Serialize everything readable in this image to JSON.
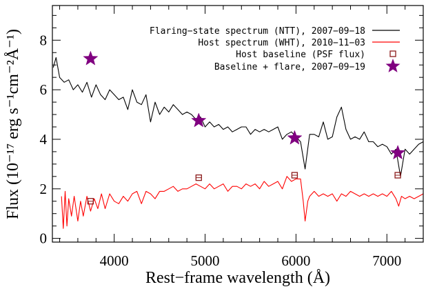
{
  "chart_data": {
    "type": "line",
    "title": "",
    "xlabel": "Rest−frame wavelength (Å)",
    "ylabel": "Flux  (10⁻¹⁷ erg s⁻¹cm⁻²Å⁻¹)",
    "xlim": [
      3320,
      7400
    ],
    "ylim": [
      -0.15,
      9.4
    ],
    "xticks": [
      4000,
      5000,
      6000,
      7000
    ],
    "yticks": [
      0,
      2,
      4,
      6,
      8
    ],
    "xtick_labels": [
      "4000",
      "5000",
      "6000",
      "7000"
    ],
    "ytick_labels": [
      "0",
      "2",
      "4",
      "6",
      "8"
    ],
    "grid": false,
    "legend_position": "top-right",
    "series": [
      {
        "name": "Flaring−state spectrum (NTT), 2007−09−18",
        "kind": "line",
        "color": "#000000",
        "x": [
          3330,
          3360,
          3400,
          3450,
          3500,
          3550,
          3600,
          3650,
          3700,
          3750,
          3800,
          3850,
          3900,
          3950,
          4000,
          4050,
          4100,
          4150,
          4200,
          4250,
          4300,
          4350,
          4400,
          4450,
          4500,
          4550,
          4600,
          4650,
          4700,
          4750,
          4800,
          4850,
          4900,
          4950,
          5000,
          5050,
          5100,
          5150,
          5200,
          5250,
          5300,
          5350,
          5400,
          5450,
          5500,
          5550,
          5600,
          5650,
          5700,
          5750,
          5800,
          5850,
          5900,
          5950,
          6000,
          6050,
          6100,
          6150,
          6200,
          6250,
          6300,
          6350,
          6400,
          6450,
          6500,
          6550,
          6600,
          6650,
          6700,
          6750,
          6800,
          6850,
          6900,
          6950,
          7000,
          7050,
          7100,
          7150,
          7200,
          7250,
          7300,
          7350,
          7400
        ],
        "y": [
          6.9,
          7.3,
          6.5,
          6.3,
          6.4,
          6.0,
          6.2,
          5.9,
          6.3,
          5.7,
          6.2,
          5.8,
          5.6,
          6.0,
          5.8,
          5.6,
          5.7,
          5.2,
          6.0,
          5.5,
          5.4,
          5.8,
          4.7,
          5.5,
          5.0,
          5.3,
          5.1,
          5.4,
          5.2,
          5.0,
          5.1,
          5.0,
          4.8,
          4.9,
          4.5,
          4.7,
          4.5,
          4.6,
          4.4,
          4.5,
          4.3,
          4.4,
          4.5,
          4.5,
          4.2,
          4.4,
          4.3,
          4.4,
          4.3,
          4.4,
          4.5,
          4.0,
          4.2,
          4.3,
          4.1,
          3.9,
          2.8,
          4.2,
          4.2,
          4.1,
          4.7,
          4.0,
          4.1,
          4.9,
          5.3,
          4.4,
          4.0,
          4.1,
          4.0,
          4.3,
          3.9,
          3.9,
          3.7,
          3.8,
          3.7,
          3.4,
          3.6,
          2.5,
          3.6,
          3.4,
          3.6,
          3.8,
          3.9
        ]
      },
      {
        "name": "Host spectrum (WHT), 2010−11−03",
        "kind": "line",
        "color": "#ff0000",
        "x": [
          3420,
          3440,
          3460,
          3480,
          3500,
          3530,
          3560,
          3600,
          3630,
          3660,
          3700,
          3740,
          3780,
          3820,
          3860,
          3900,
          3950,
          4000,
          4050,
          4100,
          4150,
          4200,
          4250,
          4300,
          4350,
          4400,
          4450,
          4500,
          4550,
          4600,
          4650,
          4700,
          4750,
          4800,
          4850,
          4900,
          4950,
          5000,
          5050,
          5100,
          5150,
          5200,
          5250,
          5300,
          5350,
          5400,
          5450,
          5500,
          5550,
          5600,
          5650,
          5700,
          5750,
          5800,
          5850,
          5900,
          5950,
          6000,
          6050,
          6080,
          6100,
          6130,
          6150,
          6200,
          6250,
          6300,
          6350,
          6400,
          6450,
          6500,
          6550,
          6600,
          6650,
          6700,
          6750,
          6800,
          6850,
          6900,
          6950,
          7000,
          7050,
          7100,
          7130,
          7160,
          7200,
          7250,
          7300,
          7350,
          7400
        ],
        "y": [
          1.7,
          0.4,
          1.9,
          0.5,
          1.6,
          0.9,
          1.7,
          0.7,
          1.5,
          0.9,
          1.7,
          1.1,
          1.6,
          1.2,
          1.8,
          1.2,
          1.8,
          1.5,
          1.4,
          1.7,
          1.5,
          1.8,
          1.9,
          1.4,
          1.9,
          1.8,
          1.6,
          1.9,
          1.9,
          2.0,
          2.1,
          1.9,
          2.0,
          2.0,
          2.1,
          2.2,
          2.1,
          2.0,
          2.2,
          2.0,
          2.1,
          2.2,
          1.9,
          2.1,
          2.1,
          2.0,
          2.2,
          2.1,
          2.2,
          2.0,
          2.3,
          2.1,
          2.2,
          2.3,
          2.0,
          2.5,
          2.3,
          2.4,
          2.4,
          1.5,
          0.7,
          1.5,
          1.7,
          1.9,
          1.7,
          1.8,
          1.7,
          1.8,
          1.5,
          1.8,
          1.7,
          1.9,
          1.8,
          1.7,
          1.8,
          1.7,
          1.8,
          1.7,
          1.8,
          1.7,
          1.9,
          1.6,
          1.3,
          1.7,
          1.6,
          1.7,
          1.6,
          1.7,
          1.8
        ]
      },
      {
        "name": "Host baseline (PSF flux)",
        "kind": "markers",
        "marker": "square",
        "color": "#8b1a1a",
        "x": [
          3740,
          4930,
          5985,
          7120
        ],
        "y": [
          1.5,
          2.45,
          2.55,
          2.55
        ]
      },
      {
        "name": "Baseline + flare, 2007−09−19",
        "kind": "markers",
        "marker": "star",
        "color": "#800080",
        "x": [
          3740,
          4930,
          5985,
          7120
        ],
        "y": [
          7.25,
          4.75,
          4.05,
          3.45
        ]
      }
    ]
  }
}
